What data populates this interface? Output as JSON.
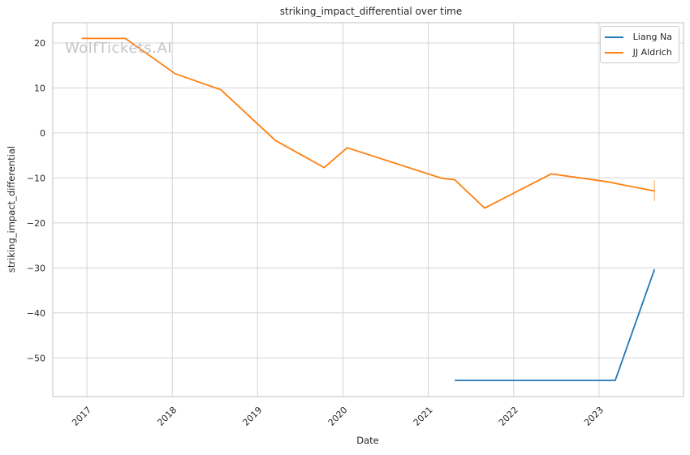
{
  "chart_data": {
    "type": "line",
    "title": "striking_impact_differential over time",
    "xlabel": "Date",
    "ylabel": "striking_impact_differential",
    "watermark": "WolfTickets.AI",
    "legend": {
      "position": "upper right",
      "entries": [
        "Liang Na",
        "JJ Aldrich"
      ]
    },
    "axes": {
      "xlim": [
        2016.6,
        2023.99
      ],
      "ylim": [
        -58.6,
        24.5
      ],
      "xticks": [
        2017,
        2018,
        2019,
        2020,
        2021,
        2022,
        2023
      ],
      "xtick_labels": [
        "2017",
        "2018",
        "2019",
        "2020",
        "2021",
        "2022",
        "2023"
      ],
      "xtick_rotation_deg": 45,
      "yticks": [
        20,
        10,
        0,
        -10,
        -20,
        -30,
        -40,
        -50
      ],
      "ytick_labels": [
        "20",
        "10",
        "0",
        "−10",
        "−20",
        "−30",
        "−40",
        "−50"
      ],
      "grid": true
    },
    "series": [
      {
        "name": "Liang Na",
        "color": "#1f77b4",
        "x": [
          2021.31,
          2023.19,
          2023.65
        ],
        "y": [
          -55.0,
          -55.0,
          -30.3
        ]
      },
      {
        "name": "JJ Aldrich",
        "color": "#ff7f0e",
        "x": [
          2016.94,
          2017.45,
          2018.03,
          2018.57,
          2019.21,
          2019.78,
          2020.05,
          2021.16,
          2021.31,
          2021.66,
          2022.44,
          2023.08,
          2023.65
        ],
        "y": [
          21.0,
          21.0,
          13.2,
          9.6,
          -1.7,
          -7.7,
          -3.3,
          -10.1,
          -10.4,
          -16.7,
          -9.1,
          -10.8,
          -12.9
        ],
        "error_bar": {
          "x": 2023.65,
          "y_low": -15.2,
          "y_high": -10.5
        }
      }
    ],
    "style_colors": {
      "background": "#ffffff",
      "grid": "#d4d4d4",
      "spine": "#cccccc",
      "text": "#262626",
      "watermark": "#c5c5c5"
    }
  }
}
